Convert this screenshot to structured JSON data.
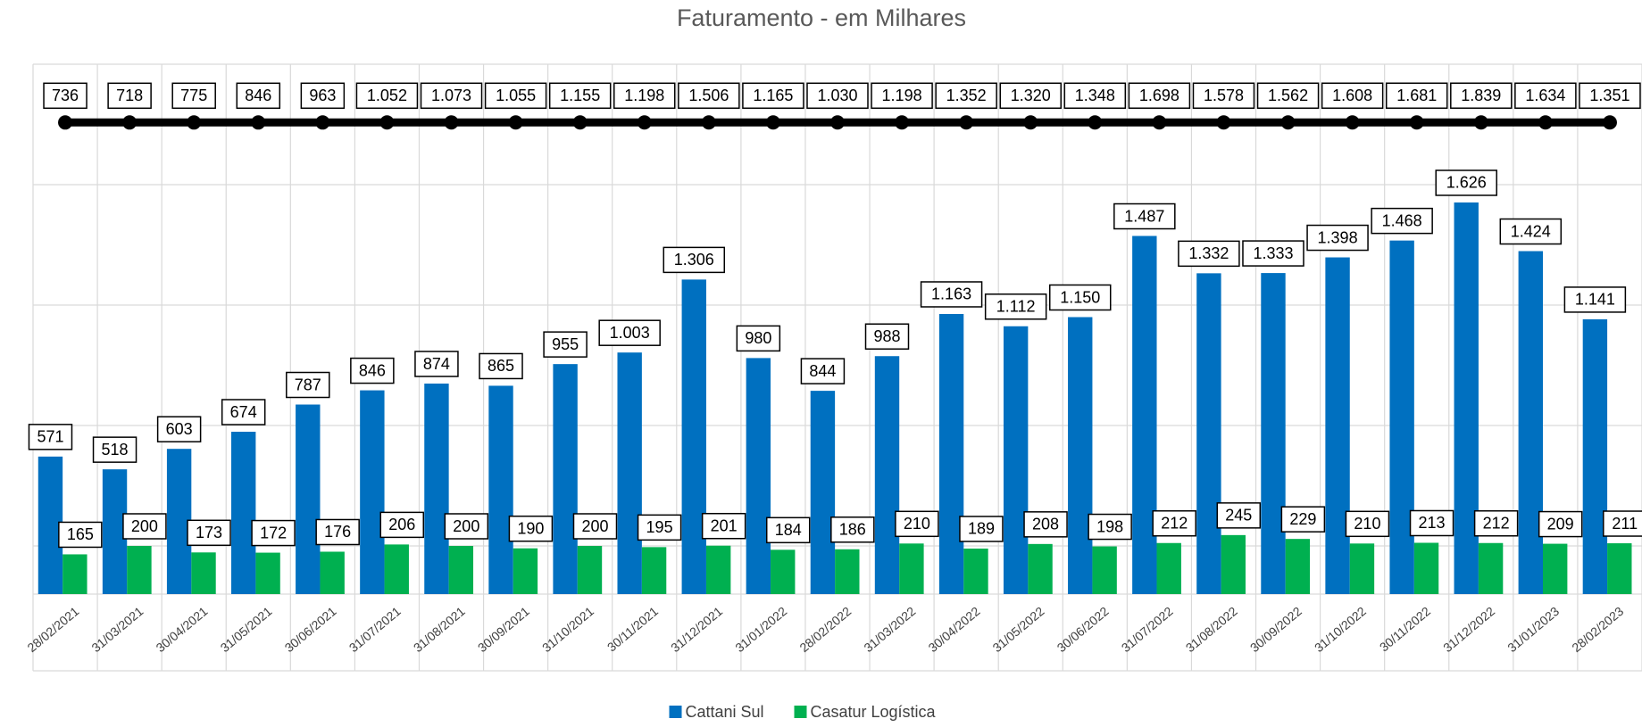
{
  "chart_data": {
    "type": "bar",
    "title": "Faturamento - em Milhares",
    "categories": [
      "28/02/2021",
      "31/03/2021",
      "30/04/2021",
      "31/05/2021",
      "30/06/2021",
      "31/07/2021",
      "31/08/2021",
      "30/09/2021",
      "31/10/2021",
      "30/11/2021",
      "31/12/2021",
      "31/01/2022",
      "28/02/2022",
      "31/03/2022",
      "30/04/2022",
      "31/05/2022",
      "30/06/2022",
      "31/07/2022",
      "31/08/2022",
      "30/09/2022",
      "31/10/2022",
      "30/11/2022",
      "31/12/2022",
      "31/01/2023",
      "28/02/2023"
    ],
    "series": [
      {
        "name": "Cattani Sul",
        "color": "#0070c0",
        "type": "bar",
        "values": [
          571,
          518,
          603,
          674,
          787,
          846,
          874,
          865,
          955,
          1003,
          1306,
          980,
          844,
          988,
          1163,
          1112,
          1150,
          1487,
          1332,
          1333,
          1398,
          1468,
          1626,
          1424,
          1141
        ],
        "value_labels": [
          "571",
          "518",
          "603",
          "674",
          "787",
          "846",
          "874",
          "865",
          "955",
          "1.003",
          "1.306",
          "980",
          "844",
          "988",
          "1.163",
          "1.112",
          "1.150",
          "1.487",
          "1.332",
          "1.333",
          "1.398",
          "1.468",
          "1.626",
          "1.424",
          "1.141"
        ]
      },
      {
        "name": "Casatur Logística",
        "color": "#00b050",
        "type": "bar",
        "values": [
          165,
          200,
          173,
          172,
          176,
          206,
          200,
          190,
          200,
          195,
          201,
          184,
          186,
          210,
          189,
          208,
          198,
          212,
          245,
          229,
          210,
          213,
          212,
          209,
          211
        ]
      },
      {
        "color": "#000000",
        "type": "line",
        "axis": "y2",
        "values": [
          736,
          718,
          775,
          846,
          963,
          1052,
          1073,
          1055,
          1155,
          1198,
          1506,
          1165,
          1030,
          1198,
          1352,
          1320,
          1348,
          1698,
          1578,
          1562,
          1608,
          1681,
          1839,
          1634,
          1351
        ],
        "value_labels": [
          "736",
          "718",
          "775",
          "846",
          "963",
          "1.052",
          "1.073",
          "1.055",
          "1.155",
          "1.198",
          "1.506",
          "1.165",
          "1.030",
          "1.198",
          "1.352",
          "1.320",
          "1.348",
          "1.698",
          "1.578",
          "1.562",
          "1.608",
          "1.681",
          "1.839",
          "1.634",
          "1.351"
        ]
      }
    ],
    "ylim": [
      0,
      2200
    ],
    "yticks": [
      200,
      700,
      1200,
      1700,
      2200
    ],
    "y2lim": [
      -8900000,
      1100000
    ],
    "grid": true,
    "legend": "bottom"
  }
}
